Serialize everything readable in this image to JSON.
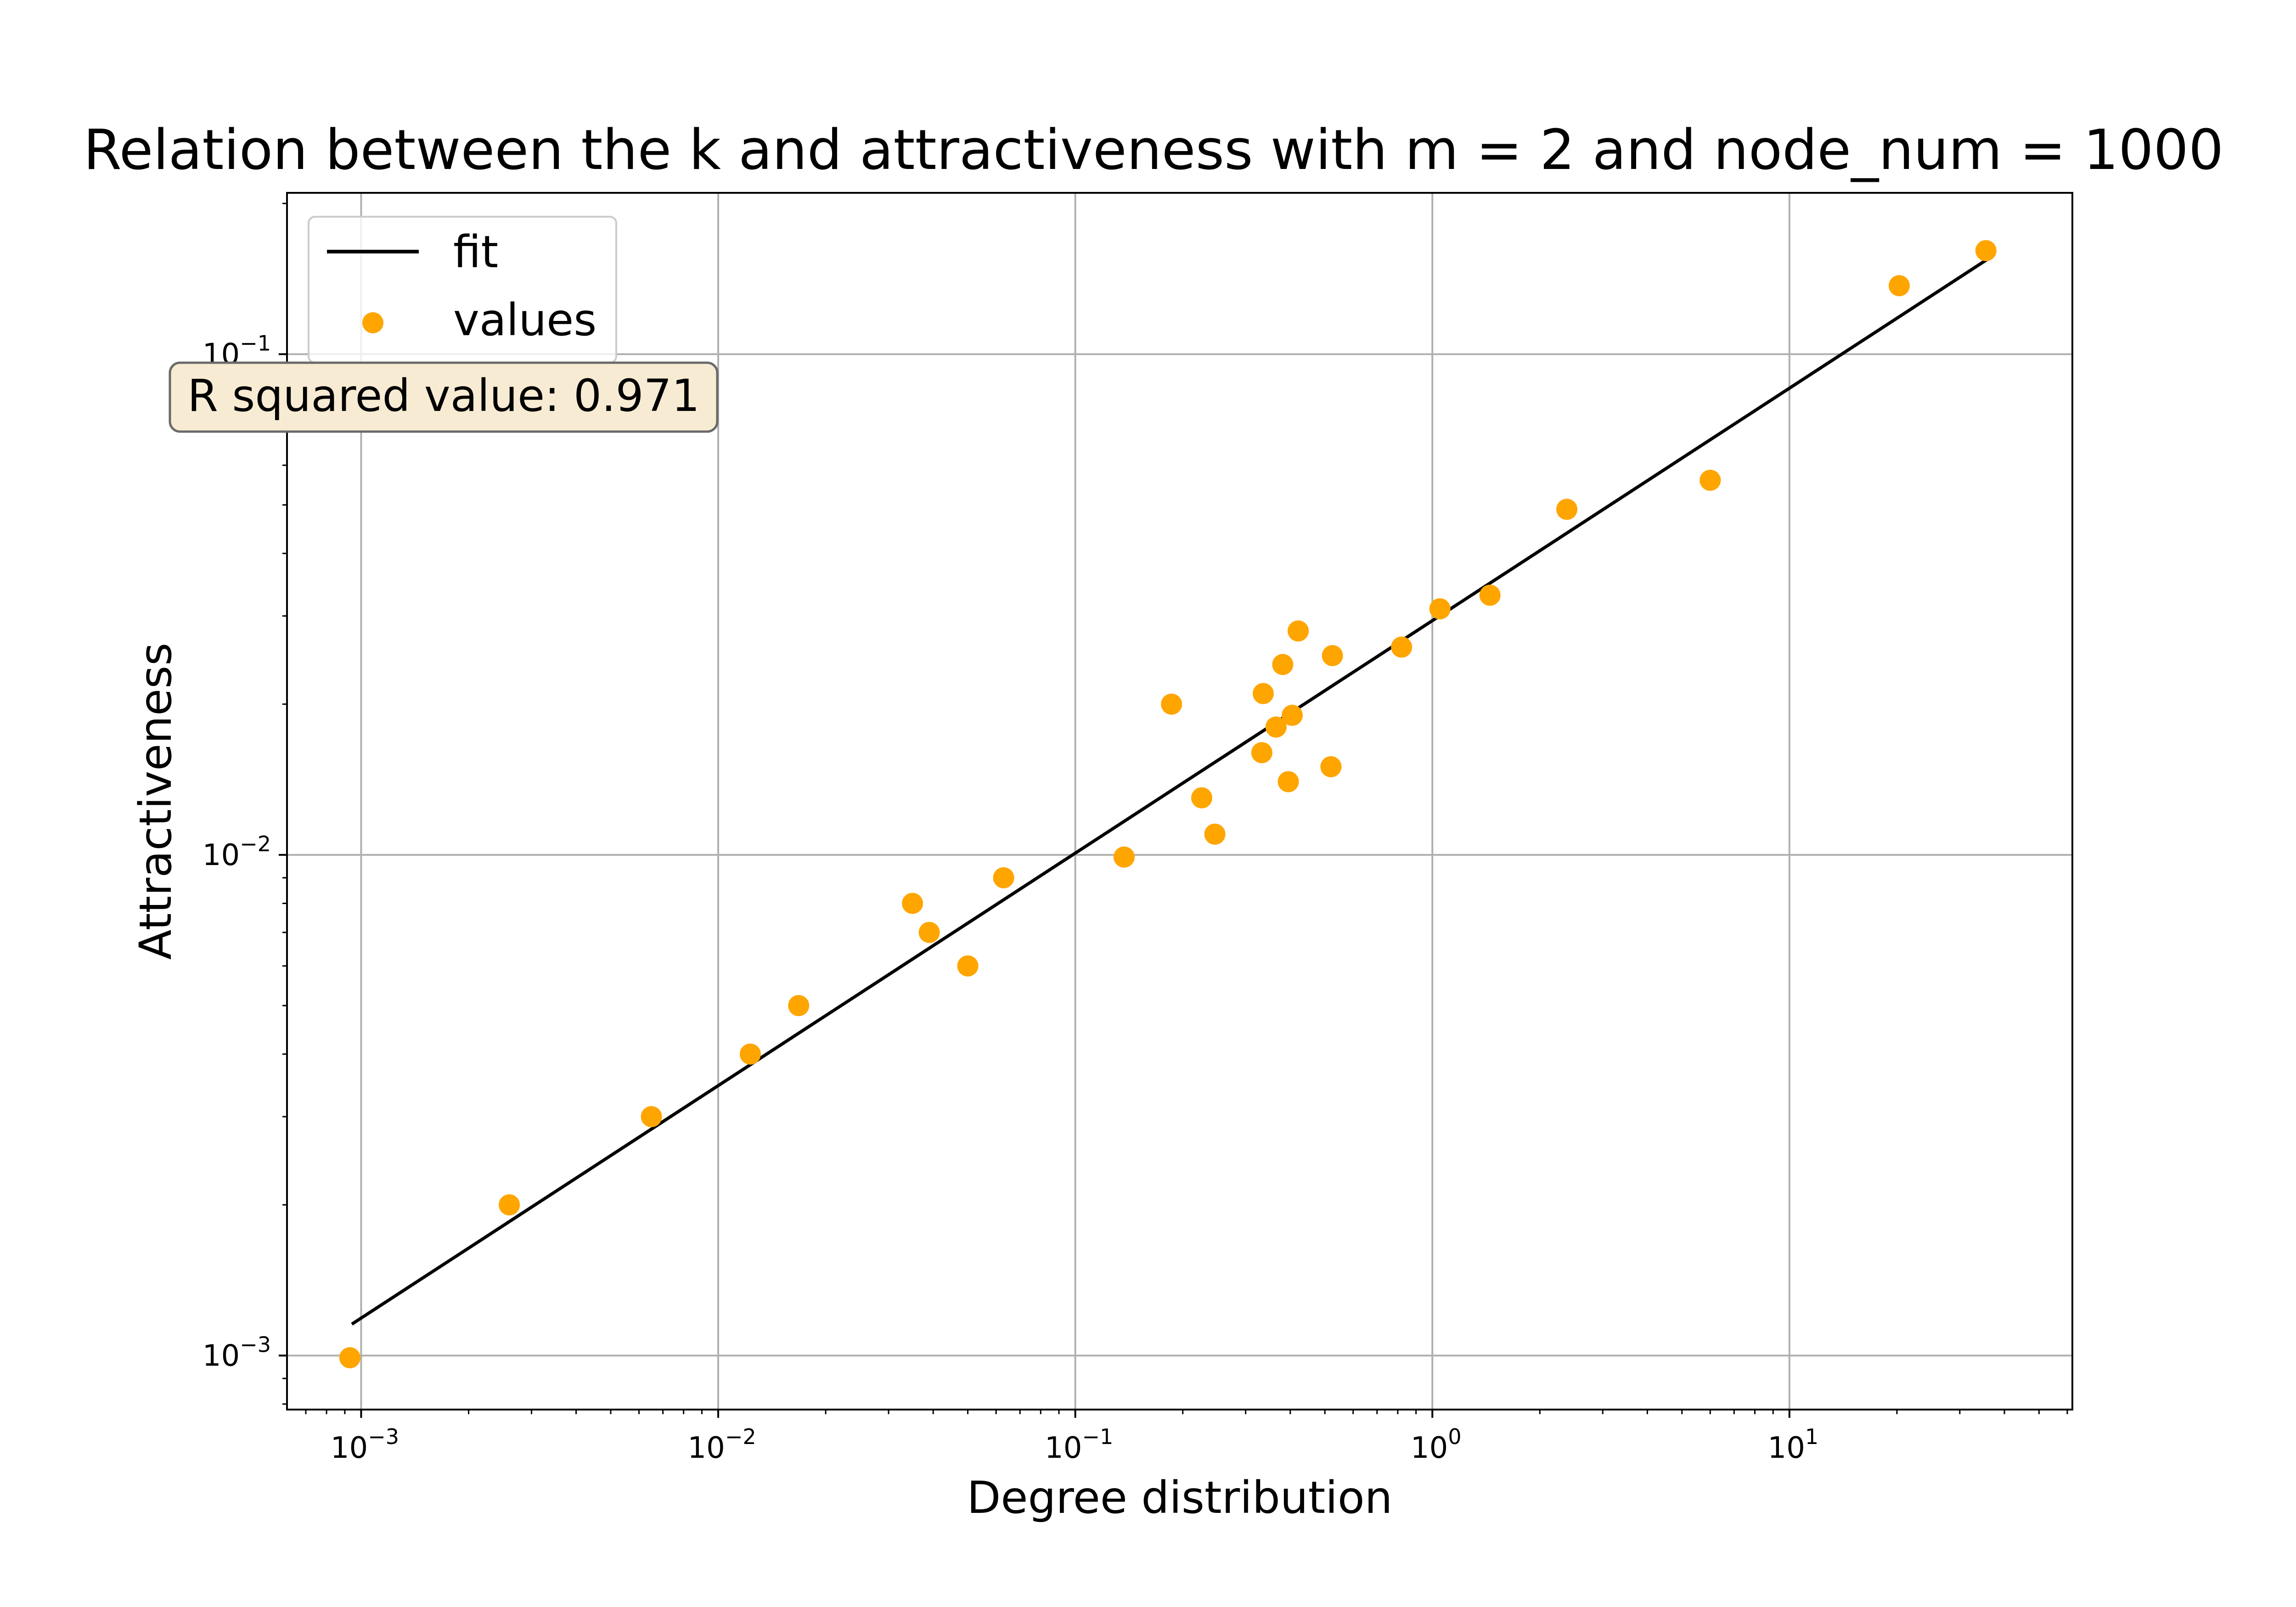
{
  "chart_data": {
    "type": "scatter",
    "title": "Relation between the k and attractiveness with m = 2 and node_num = 1000",
    "xlabel": "Degree distribution",
    "ylabel": "Attractiveness",
    "xscale": "log",
    "yscale": "log",
    "xlim": [
      0.00062,
      62
    ],
    "ylim": [
      0.00078,
      0.21
    ],
    "grid": true,
    "legend": {
      "placement": "top-left"
    },
    "annotation": {
      "text": "R squared value: 0.971",
      "placement": "top-left",
      "facecolor": "#f8ebd3"
    },
    "x_ticks": [
      {
        "value": 0.001,
        "base": "10",
        "exp": "−3"
      },
      {
        "value": 0.01,
        "base": "10",
        "exp": "−2"
      },
      {
        "value": 0.1,
        "base": "10",
        "exp": "−1"
      },
      {
        "value": 1,
        "base": "10",
        "exp": "0"
      },
      {
        "value": 10,
        "base": "10",
        "exp": "1"
      }
    ],
    "y_ticks": [
      {
        "value": 0.001,
        "base": "10",
        "exp": "−3"
      },
      {
        "value": 0.01,
        "base": "10",
        "exp": "−2"
      },
      {
        "value": 0.1,
        "base": "10",
        "exp": "−1"
      }
    ],
    "series": [
      {
        "name": "fit",
        "type": "line",
        "color": "#000000",
        "points": [
          [
            0.00095,
            0.00116
          ],
          [
            36,
            0.155
          ]
        ]
      },
      {
        "name": "values",
        "type": "scatter",
        "color": "#ffa500",
        "points": [
          [
            0.00093,
            0.00099
          ],
          [
            0.0026,
            0.002
          ],
          [
            0.0065,
            0.003
          ],
          [
            0.0123,
            0.004
          ],
          [
            0.0168,
            0.005
          ],
          [
            0.035,
            0.008
          ],
          [
            0.039,
            0.007
          ],
          [
            0.05,
            0.006
          ],
          [
            0.063,
            0.009
          ],
          [
            0.137,
            0.0099
          ],
          [
            0.186,
            0.02
          ],
          [
            0.226,
            0.013
          ],
          [
            0.246,
            0.011
          ],
          [
            0.333,
            0.016
          ],
          [
            0.336,
            0.021
          ],
          [
            0.365,
            0.018
          ],
          [
            0.381,
            0.024
          ],
          [
            0.395,
            0.014
          ],
          [
            0.405,
            0.019
          ],
          [
            0.421,
            0.028
          ],
          [
            0.52,
            0.015
          ],
          [
            0.525,
            0.025
          ],
          [
            0.82,
            0.026
          ],
          [
            1.05,
            0.031
          ],
          [
            1.45,
            0.033
          ],
          [
            2.38,
            0.049
          ],
          [
            6.0,
            0.056
          ],
          [
            20.3,
            0.137
          ],
          [
            35.5,
            0.161
          ]
        ]
      }
    ]
  }
}
